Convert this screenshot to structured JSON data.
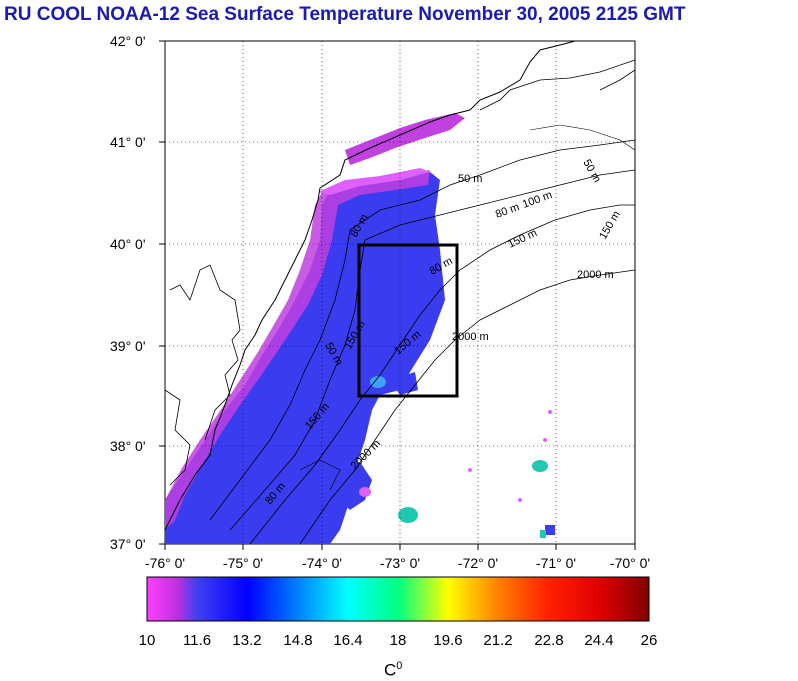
{
  "title": "RU COOL  NOAA-12 Sea Surface Temperature November 30, 2005 2125 GMT",
  "lat_labels": [
    "42° 0'",
    "41° 0'",
    "40° 0'",
    "39° 0'",
    "38° 0'",
    "37° 0'"
  ],
  "lon_labels": [
    "-76° 0'",
    "-75° 0'",
    "-74° 0'",
    "-73° 0'",
    "-72° 0'",
    "-71° 0'",
    "-70° 0'"
  ],
  "contour_labels": [
    "50 m",
    "80 m",
    "100 m",
    "150 m",
    "2000 m",
    "80 m",
    "2000 m",
    "150 m",
    "50 m",
    "80 m",
    "150 m",
    "150 m",
    "2000 m",
    "80 m",
    "150 m",
    "50 m"
  ],
  "colorbar": {
    "ticks": [
      "10",
      "11.6",
      "13.2",
      "14.8",
      "16.4",
      "18",
      "19.6",
      "21.2",
      "22.8",
      "24.4",
      "26"
    ],
    "unit": "C",
    "unit_sup": "0",
    "min": 10,
    "max": 26
  },
  "colors": {
    "title": "#1a1ab4",
    "cold_water": "#3a3cf0",
    "near_shore": "#c040e0",
    "warm_patch": "#20c8b0"
  }
}
